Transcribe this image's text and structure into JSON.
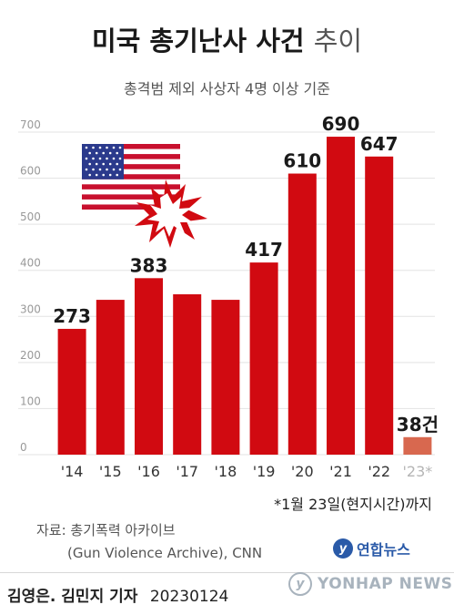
{
  "header": {
    "title_bold": "미국 총기난사 사건",
    "title_light": "추이",
    "subtitle": "총격범 제외 사상자 4명 이상 기준"
  },
  "chart_data": {
    "type": "bar",
    "categories": [
      "'14",
      "'15",
      "'16",
      "'17",
      "'18",
      "'19",
      "'20",
      "'21",
      "'22",
      "'23*"
    ],
    "values": [
      273,
      336,
      383,
      348,
      336,
      417,
      610,
      690,
      647,
      38
    ],
    "data_labels": [
      "273",
      "",
      "383",
      "",
      "",
      "417",
      "610",
      "690",
      "647",
      "38건"
    ],
    "ylim": [
      0,
      700
    ],
    "yticks": [
      "0",
      "100",
      "200",
      "300",
      "400",
      "500",
      "600",
      "700"
    ],
    "grid": true,
    "colors": {
      "bar": "#d10a11",
      "bar_partial": "#d8684f",
      "grid": "#e3e3e3",
      "tick_label": "#999999",
      "partial_tick_label": "#b5b5b5"
    }
  },
  "footnote": "*1월 23일(현지시간)까지",
  "source": {
    "line1": "자료: 총기폭력 아카이브",
    "line2": "(Gun Violence Archive), CNN"
  },
  "logo": {
    "text": "연합뉴스",
    "icon": "yonhap-logo-icon"
  },
  "watermark": {
    "text": "YONHAP NEWS",
    "icon": "yonhap-logo-icon"
  },
  "credit": {
    "author": "김영은. 김민지 기자",
    "date": "20230124"
  },
  "illustration": {
    "icon": "us-flag-explosion-icon"
  }
}
